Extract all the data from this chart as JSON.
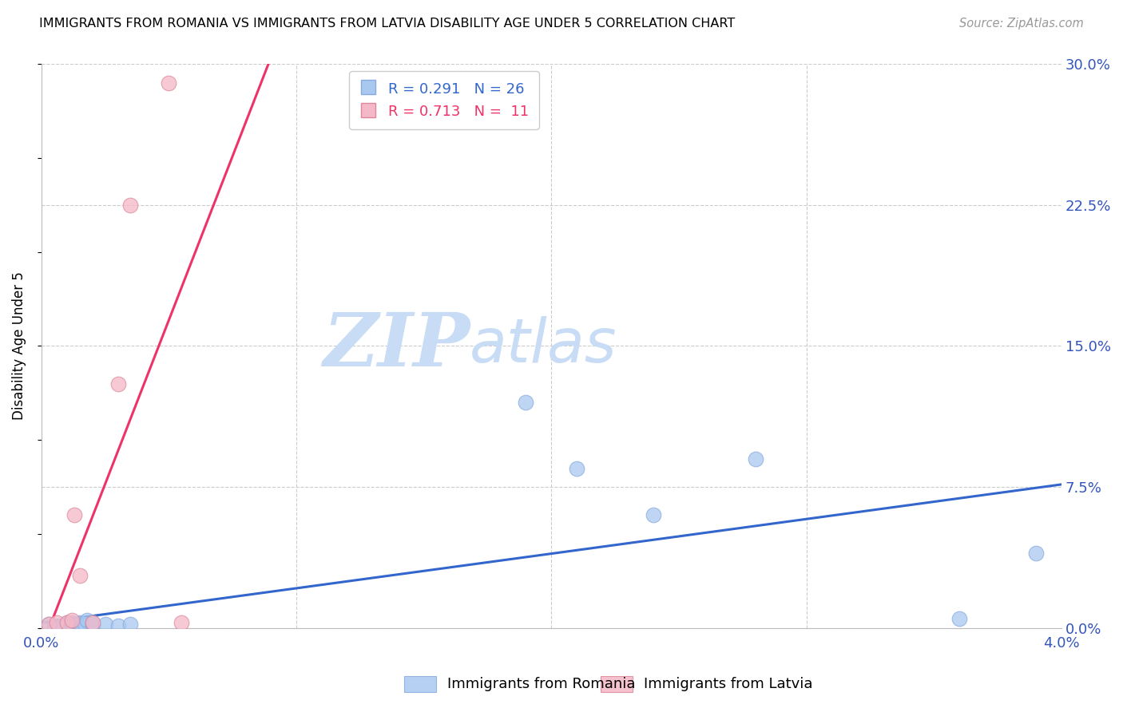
{
  "title": "IMMIGRANTS FROM ROMANIA VS IMMIGRANTS FROM LATVIA DISABILITY AGE UNDER 5 CORRELATION CHART",
  "source": "Source: ZipAtlas.com",
  "ylabel": "Disability Age Under 5",
  "xlim": [
    0.0,
    0.04
  ],
  "ylim": [
    0.0,
    0.3
  ],
  "ytick_labels_right": [
    "0.0%",
    "7.5%",
    "15.0%",
    "22.5%",
    "30.0%"
  ],
  "yticks_right": [
    0.0,
    0.075,
    0.15,
    0.225,
    0.3
  ],
  "romania_color": "#a8c8f0",
  "latvia_color": "#f5b8c8",
  "romania_R": 0.291,
  "romania_N": 26,
  "latvia_R": 0.713,
  "latvia_N": 11,
  "romania_line_color": "#3366cc",
  "latvia_line_color": "#ee3366",
  "watermark_zip": "ZIP",
  "watermark_atlas": "atlas",
  "watermark_color_zip": "#c8ddf5",
  "watermark_color_atlas": "#c8ddf5",
  "romania_x": [
    0.0003,
    0.0005,
    0.0007,
    0.001,
    0.001,
    0.0012,
    0.0012,
    0.0014,
    0.0015,
    0.0015,
    0.0015,
    0.0016,
    0.0017,
    0.0018,
    0.002,
    0.002,
    0.002,
    0.0025,
    0.003,
    0.0035,
    0.019,
    0.021,
    0.024,
    0.028,
    0.036,
    0.039
  ],
  "romania_y": [
    0.002,
    0.001,
    0.001,
    0.002,
    0.003,
    0.001,
    0.003,
    0.001,
    0.001,
    0.002,
    0.003,
    0.001,
    0.002,
    0.004,
    0.001,
    0.002,
    0.003,
    0.002,
    0.001,
    0.002,
    0.12,
    0.085,
    0.06,
    0.09,
    0.005,
    0.04
  ],
  "latvia_x": [
    0.0003,
    0.0006,
    0.001,
    0.0012,
    0.0013,
    0.0015,
    0.002,
    0.003,
    0.0035,
    0.005,
    0.0055
  ],
  "latvia_y": [
    0.002,
    0.003,
    0.003,
    0.004,
    0.06,
    0.028,
    0.003,
    0.13,
    0.225,
    0.29,
    0.003
  ],
  "legend_text_1": "R = 0.291   N = 26",
  "legend_text_2": "R = 0.713   N =  11",
  "legend_label_romania": "Immigrants from Romania",
  "legend_label_latvia": "Immigrants from Latvia"
}
